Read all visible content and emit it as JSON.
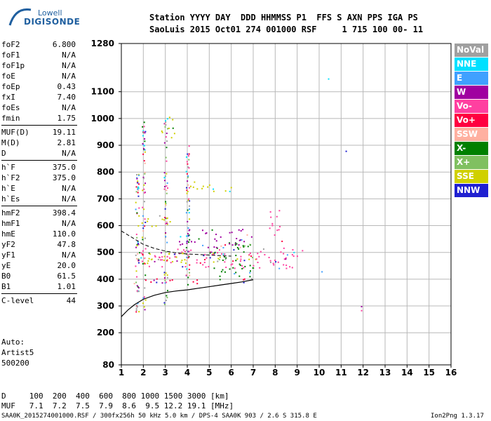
{
  "logo": {
    "line1": "Lowell",
    "line2": "DIGISONDE"
  },
  "header": {
    "line1": "Station YYYY DAY  DDD HHMMSS P1  FFS S AXN PPS IGA PS",
    "line2": "SaoLuis 2015 Oct01 274 001000 RSF     1 715 100 00- 11"
  },
  "params": [
    [
      {
        "k": "foF2",
        "v": "6.800"
      },
      {
        "k": "foF1",
        "v": "N/A"
      },
      {
        "k": "foF1p",
        "v": "N/A"
      },
      {
        "k": "foE",
        "v": "N/A"
      },
      {
        "k": "foEp",
        "v": "0.43"
      },
      {
        "k": "fxI",
        "v": "7.40"
      },
      {
        "k": "foEs",
        "v": "N/A"
      },
      {
        "k": "fmin",
        "v": "1.75"
      }
    ],
    [
      {
        "k": "MUF(D)",
        "v": "19.11"
      },
      {
        "k": "M(D)",
        "v": "2.81"
      },
      {
        "k": "D",
        "v": "N/A"
      }
    ],
    [
      {
        "k": "h`F",
        "v": "375.0"
      },
      {
        "k": "h`F2",
        "v": "375.0"
      },
      {
        "k": "h`E",
        "v": "N/A"
      },
      {
        "k": "h`Es",
        "v": "N/A"
      }
    ],
    [
      {
        "k": "hmF2",
        "v": "398.4"
      },
      {
        "k": "hmF1",
        "v": "N/A"
      },
      {
        "k": "hmE",
        "v": "110.0"
      },
      {
        "k": "yF2",
        "v": "47.8"
      },
      {
        "k": "yF1",
        "v": "N/A"
      },
      {
        "k": "yE",
        "v": "20.0"
      },
      {
        "k": "B0",
        "v": "61.5"
      },
      {
        "k": "B1",
        "v": "1.01"
      }
    ],
    [
      {
        "k": "C-level",
        "v": "44"
      }
    ]
  ],
  "auto": {
    "line1": "Auto:",
    "line2": "Artist5",
    "line3": "500200"
  },
  "legend": [
    {
      "label": "NoVal",
      "color": "#a0a0a0"
    },
    {
      "label": "NNE",
      "color": "#00e0ff"
    },
    {
      "label": "E",
      "color": "#40a0ff"
    },
    {
      "label": "W",
      "color": "#a000a0"
    },
    {
      "label": "Vo-",
      "color": "#ff40a0"
    },
    {
      "label": "Vo+",
      "color": "#ff0040"
    },
    {
      "label": "SSW",
      "color": "#ffb0a0"
    },
    {
      "label": "X-",
      "color": "#008000"
    },
    {
      "label": "X+",
      "color": "#80c060"
    },
    {
      "label": "SSE",
      "color": "#d0d000"
    },
    {
      "label": "NNW",
      "color": "#2020d0"
    }
  ],
  "bottom": {
    "dline": "D     100  200  400  600  800 1000 1500 3000 [km]",
    "mufline": "MUF   7.1  7.2  7.5  7.9  8.6  9.5 12.2 19.1 [MHz]",
    "footer": "SAA0K_2015274001000.RSF / 300fx256h 50 kHz 5.0 km / DPS-4 SAA0K 903 / 2.6 S 315.8 E",
    "version": "Ion2Png 1.3.17"
  },
  "chart_data": {
    "type": "scatter",
    "xlim": [
      1,
      16
    ],
    "ylim": [
      80,
      1280
    ],
    "xticks": [
      1,
      2,
      3,
      4,
      5,
      6,
      7,
      8,
      9,
      10,
      11,
      12,
      13,
      14,
      15,
      16
    ],
    "yticks": [
      80,
      200,
      300,
      400,
      500,
      600,
      700,
      800,
      900,
      1000,
      1100,
      1280
    ],
    "grid": true,
    "legend_position": "right",
    "profile_curve": {
      "x": [
        1.0,
        1.3,
        1.6,
        2.0,
        2.5,
        3.0,
        3.5,
        4.0,
        4.5,
        5.0,
        5.5,
        6.0,
        6.5,
        7.0
      ],
      "y": [
        260,
        285,
        305,
        325,
        340,
        350,
        356,
        360,
        366,
        372,
        378,
        384,
        390,
        398
      ]
    },
    "trace_curve": {
      "x": [
        1.0,
        1.5,
        2.0,
        2.5,
        3.0,
        3.5,
        4.0,
        4.5,
        5.0,
        5.5,
        6.0
      ],
      "y": [
        580,
        555,
        530,
        515,
        505,
        498,
        494,
        492,
        490,
        488,
        486
      ]
    },
    "trace_bands": [
      {
        "name": "Vo+",
        "color": "#ff0040",
        "x": [
          1.5,
          7.0
        ],
        "y": [
          385,
          405
        ]
      },
      {
        "name": "Vo-",
        "color": "#ff40a0",
        "x": [
          1.6,
          9.3
        ],
        "y": [
          440,
          520
        ]
      },
      {
        "name": "SSE",
        "color": "#d0d000",
        "x": [
          1.8,
          7.0
        ],
        "y": [
          460,
          500
        ]
      },
      {
        "name": "X-",
        "color": "#008000",
        "x": [
          5.0,
          7.0
        ],
        "y": [
          400,
          540
        ]
      },
      {
        "name": "W",
        "color": "#a000a0",
        "x": [
          3.5,
          7.0
        ],
        "y": [
          520,
          590
        ]
      },
      {
        "name": "SSE",
        "color": "#d0d000",
        "x": [
          1.8,
          3.2
        ],
        "y": [
          590,
          640
        ]
      },
      {
        "name": "SSE",
        "color": "#d0d000",
        "x": [
          4.0,
          6.0
        ],
        "y": [
          730,
          770
        ]
      },
      {
        "name": "SSE",
        "color": "#d0d000",
        "x": [
          2.8,
          3.4
        ],
        "y": [
          920,
          1020
        ]
      },
      {
        "name": "Vo-",
        "color": "#ff40a0",
        "x": [
          7.7,
          8.3
        ],
        "y": [
          540,
          660
        ]
      }
    ],
    "isolated_points": [
      {
        "x": 10.4,
        "y": 1150,
        "color": "#00e0ff"
      },
      {
        "x": 11.2,
        "y": 880,
        "color": "#2020d0"
      },
      {
        "x": 11.9,
        "y": 300,
        "color": "#a000a0"
      },
      {
        "x": 11.9,
        "y": 285,
        "color": "#ff40a0"
      },
      {
        "x": 10.1,
        "y": 430,
        "color": "#40a0ff"
      }
    ]
  }
}
